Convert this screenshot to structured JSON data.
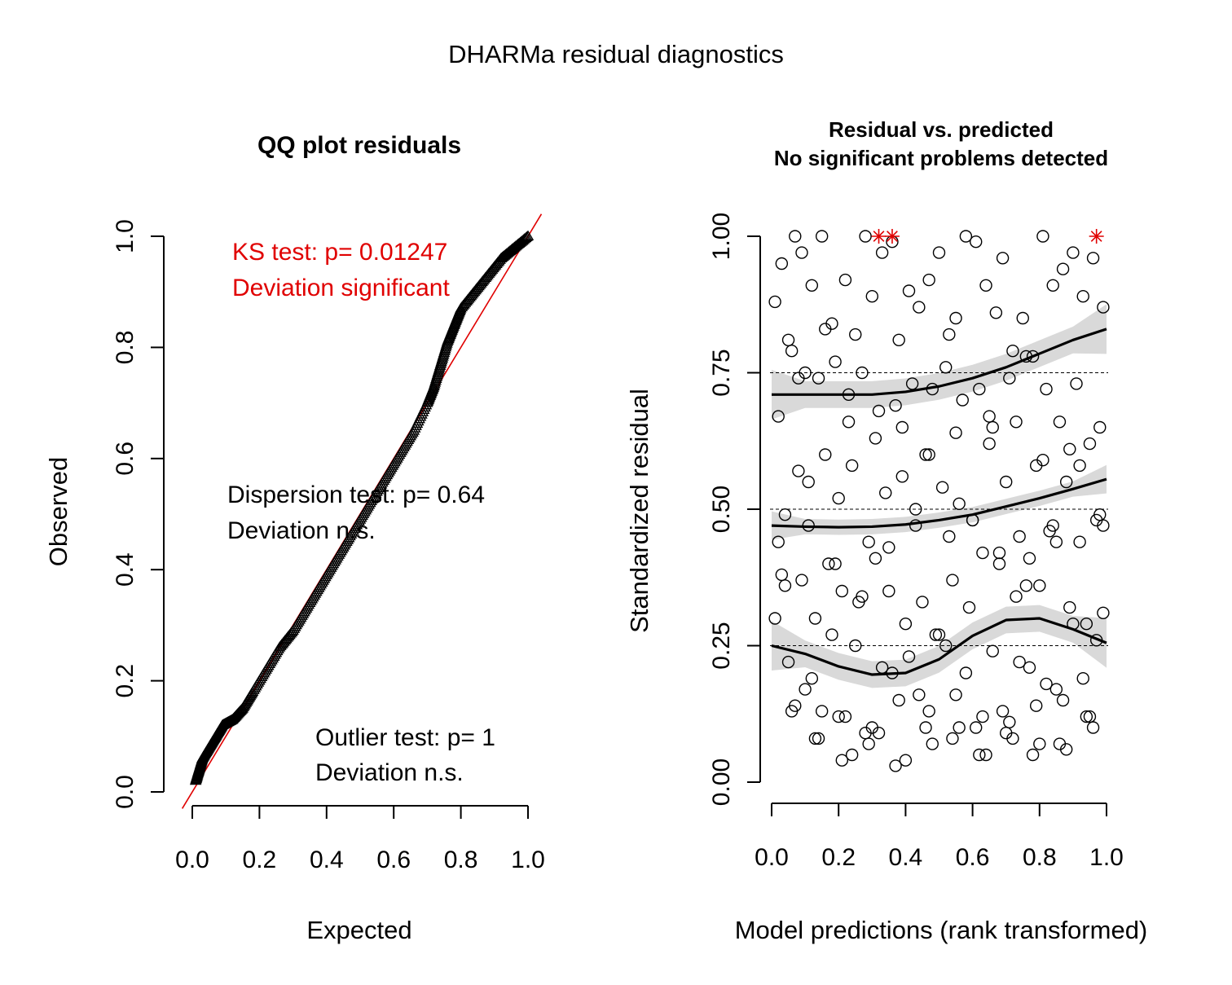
{
  "figure": {
    "title": "DHARMa residual diagnostics"
  },
  "colors": {
    "axis": "#000000",
    "accent_red": "#e00000",
    "ci_band": "#d9d9d9",
    "points": "#000000"
  },
  "chart_data": [
    {
      "type": "scatter",
      "title": "QQ plot residuals",
      "xlabel": "Expected",
      "ylabel": "Observed",
      "xlim": [
        0,
        1
      ],
      "ylim": [
        0,
        1
      ],
      "xticks": [
        "0.0",
        "0.2",
        "0.4",
        "0.6",
        "0.8",
        "1.0"
      ],
      "yticks": [
        "0.0",
        "0.2",
        "0.4",
        "0.6",
        "0.8",
        "1.0"
      ],
      "grid": false,
      "reference_line": {
        "from": [
          0,
          0
        ],
        "to": [
          1,
          1
        ],
        "color": "#e00000"
      },
      "series": [
        {
          "marker": "triangle",
          "x": [
            0.01,
            0.02,
            0.03,
            0.05,
            0.07,
            0.09,
            0.12,
            0.15,
            0.18,
            0.22,
            0.26,
            0.3,
            0.34,
            0.38,
            0.42,
            0.46,
            0.5,
            0.54,
            0.58,
            0.62,
            0.66,
            0.7,
            0.72,
            0.74,
            0.76,
            0.78,
            0.8,
            0.84,
            0.88,
            0.92,
            0.96,
            1.0
          ],
          "y": [
            0.02,
            0.04,
            0.06,
            0.08,
            0.1,
            0.12,
            0.13,
            0.15,
            0.18,
            0.22,
            0.26,
            0.29,
            0.33,
            0.37,
            0.41,
            0.45,
            0.49,
            0.53,
            0.57,
            0.61,
            0.65,
            0.7,
            0.73,
            0.77,
            0.81,
            0.84,
            0.87,
            0.9,
            0.93,
            0.96,
            0.98,
            1.0
          ]
        }
      ],
      "annotations": [
        {
          "text": "KS test: p= 0.01247",
          "color": "red"
        },
        {
          "text": "Deviation  significant",
          "color": "red"
        },
        {
          "text": "Dispersion test: p= 0.64",
          "color": "black"
        },
        {
          "text": "Deviation  n.s.",
          "color": "black"
        },
        {
          "text": "Outlier test: p= 1",
          "color": "black"
        },
        {
          "text": "Deviation  n.s.",
          "color": "black"
        }
      ]
    },
    {
      "type": "scatter",
      "title": "Residual vs. predicted",
      "subtitle": "No significant problems detected",
      "xlabel": "Model predictions (rank transformed)",
      "ylabel": "Standardized residual",
      "xlim": [
        0,
        1
      ],
      "ylim": [
        0,
        1
      ],
      "xticks": [
        "0.0",
        "0.2",
        "0.4",
        "0.6",
        "0.8",
        "1.0"
      ],
      "yticks": [
        "0.00",
        "0.25",
        "0.50",
        "0.75",
        "1.00"
      ],
      "grid": false,
      "hlines": [
        0.25,
        0.5,
        0.75
      ],
      "points": {
        "marker": "open-circle",
        "x": [
          0.01,
          0.03,
          0.05,
          0.07,
          0.09,
          0.12,
          0.15,
          0.18,
          0.22,
          0.25,
          0.28,
          0.3,
          0.33,
          0.36,
          0.38,
          0.41,
          0.44,
          0.47,
          0.5,
          0.53,
          0.55,
          0.58,
          0.61,
          0.64,
          0.67,
          0.69,
          0.72,
          0.75,
          0.78,
          0.81,
          0.84,
          0.87,
          0.9,
          0.93,
          0.96,
          0.99,
          0.02,
          0.06,
          0.1,
          0.14,
          0.19,
          0.23,
          0.27,
          0.32,
          0.37,
          0.42,
          0.48,
          0.52,
          0.57,
          0.62,
          0.66,
          0.71,
          0.76,
          0.82,
          0.86,
          0.91,
          0.95,
          0.98,
          0.04,
          0.08,
          0.11,
          0.16,
          0.2,
          0.24,
          0.29,
          0.34,
          0.39,
          0.43,
          0.46,
          0.51,
          0.56,
          0.6,
          0.65,
          0.7,
          0.74,
          0.79,
          0.83,
          0.88,
          0.92,
          0.97,
          0.03,
          0.09,
          0.13,
          0.17,
          0.21,
          0.26,
          0.31,
          0.35,
          0.4,
          0.45,
          0.49,
          0.54,
          0.59,
          0.63,
          0.68,
          0.73,
          0.77,
          0.8,
          0.85,
          0.89,
          0.94,
          0.99,
          0.05,
          0.12,
          0.18,
          0.25,
          0.33,
          0.41,
          0.5,
          0.58,
          0.66,
          0.74,
          0.82,
          0.9,
          0.97,
          0.07,
          0.15,
          0.22,
          0.3,
          0.38,
          0.47,
          0.55,
          0.63,
          0.71,
          0.79,
          0.87,
          0.95,
          0.01,
          0.1,
          0.2,
          0.28,
          0.36,
          0.44,
          0.52,
          0.61,
          0.69,
          0.77,
          0.85,
          0.93,
          0.02,
          0.11,
          0.19,
          0.27,
          0.35,
          0.43,
          0.53,
          0.6,
          0.68,
          0.76,
          0.84,
          0.92,
          0.99,
          0.06,
          0.14,
          0.24,
          0.32,
          0.4,
          0.48,
          0.56,
          0.64,
          0.72,
          0.8,
          0.88,
          0.96,
          0.04,
          0.13,
          0.21,
          0.29,
          0.37,
          0.46,
          0.54,
          0.62,
          0.7,
          0.78,
          0.86,
          0.94,
          0.08,
          0.16,
          0.23,
          0.31,
          0.39,
          0.47,
          0.55,
          0.65,
          0.73,
          0.81,
          0.89,
          0.98
        ],
        "y": [
          0.88,
          0.95,
          0.81,
          1.0,
          0.97,
          0.91,
          1.0,
          0.84,
          0.92,
          0.82,
          1.0,
          0.89,
          0.97,
          0.99,
          0.81,
          0.9,
          0.87,
          0.92,
          0.97,
          0.82,
          0.85,
          1.0,
          0.99,
          0.91,
          0.86,
          0.96,
          0.79,
          0.85,
          0.78,
          1.0,
          0.91,
          0.94,
          0.97,
          0.89,
          0.96,
          0.87,
          0.67,
          0.79,
          0.75,
          0.74,
          0.77,
          0.71,
          0.75,
          0.68,
          0.69,
          0.73,
          0.72,
          0.76,
          0.7,
          0.72,
          0.65,
          0.74,
          0.78,
          0.72,
          0.66,
          0.73,
          0.62,
          0.65,
          0.49,
          0.57,
          0.55,
          0.6,
          0.52,
          0.58,
          0.44,
          0.53,
          0.56,
          0.47,
          0.6,
          0.54,
          0.51,
          0.48,
          0.62,
          0.55,
          0.45,
          0.58,
          0.46,
          0.55,
          0.58,
          0.48,
          0.38,
          0.37,
          0.3,
          0.4,
          0.35,
          0.33,
          0.41,
          0.35,
          0.29,
          0.33,
          0.27,
          0.37,
          0.32,
          0.42,
          0.4,
          0.34,
          0.41,
          0.36,
          0.44,
          0.32,
          0.29,
          0.31,
          0.22,
          0.19,
          0.27,
          0.25,
          0.21,
          0.23,
          0.27,
          0.2,
          0.24,
          0.22,
          0.18,
          0.29,
          0.26,
          0.14,
          0.13,
          0.12,
          0.1,
          0.15,
          0.13,
          0.16,
          0.12,
          0.11,
          0.14,
          0.15,
          0.12,
          0.3,
          0.17,
          0.12,
          0.09,
          0.2,
          0.16,
          0.25,
          0.1,
          0.13,
          0.21,
          0.17,
          0.19,
          0.44,
          0.47,
          0.4,
          0.34,
          0.43,
          0.5,
          0.45,
          0.48,
          0.42,
          0.36,
          0.47,
          0.44,
          0.47,
          0.13,
          0.08,
          0.05,
          0.09,
          0.04,
          0.07,
          0.1,
          0.05,
          0.08,
          0.07,
          0.06,
          0.1,
          0.36,
          0.08,
          0.04,
          0.07,
          0.03,
          0.1,
          0.08,
          0.05,
          0.09,
          0.05,
          0.07,
          0.12,
          0.74,
          0.83,
          0.66,
          0.63,
          0.65,
          0.6,
          0.64,
          0.67,
          0.66,
          0.59,
          0.61,
          0.49
        ]
      },
      "outliers": {
        "marker": "asterisk",
        "color": "red",
        "x": [
          0.32,
          0.36,
          0.97
        ],
        "y": [
          1.0,
          1.0,
          1.0
        ]
      },
      "smooth_lines": [
        {
          "quantile": 0.75,
          "x": [
            0.0,
            0.1,
            0.2,
            0.3,
            0.4,
            0.5,
            0.6,
            0.7,
            0.8,
            0.9,
            1.0
          ],
          "y": [
            0.71,
            0.71,
            0.71,
            0.71,
            0.715,
            0.725,
            0.74,
            0.76,
            0.785,
            0.81,
            0.83
          ]
        },
        {
          "quantile": 0.5,
          "x": [
            0.0,
            0.1,
            0.2,
            0.3,
            0.4,
            0.5,
            0.6,
            0.7,
            0.8,
            0.9,
            1.0
          ],
          "y": [
            0.47,
            0.468,
            0.467,
            0.468,
            0.472,
            0.48,
            0.49,
            0.505,
            0.52,
            0.537,
            0.555
          ]
        },
        {
          "quantile": 0.25,
          "x": [
            0.0,
            0.1,
            0.2,
            0.3,
            0.4,
            0.5,
            0.6,
            0.7,
            0.8,
            0.9,
            1.0
          ],
          "y": [
            0.25,
            0.235,
            0.212,
            0.197,
            0.2,
            0.225,
            0.268,
            0.297,
            0.3,
            0.28,
            0.255
          ]
        }
      ]
    }
  ]
}
